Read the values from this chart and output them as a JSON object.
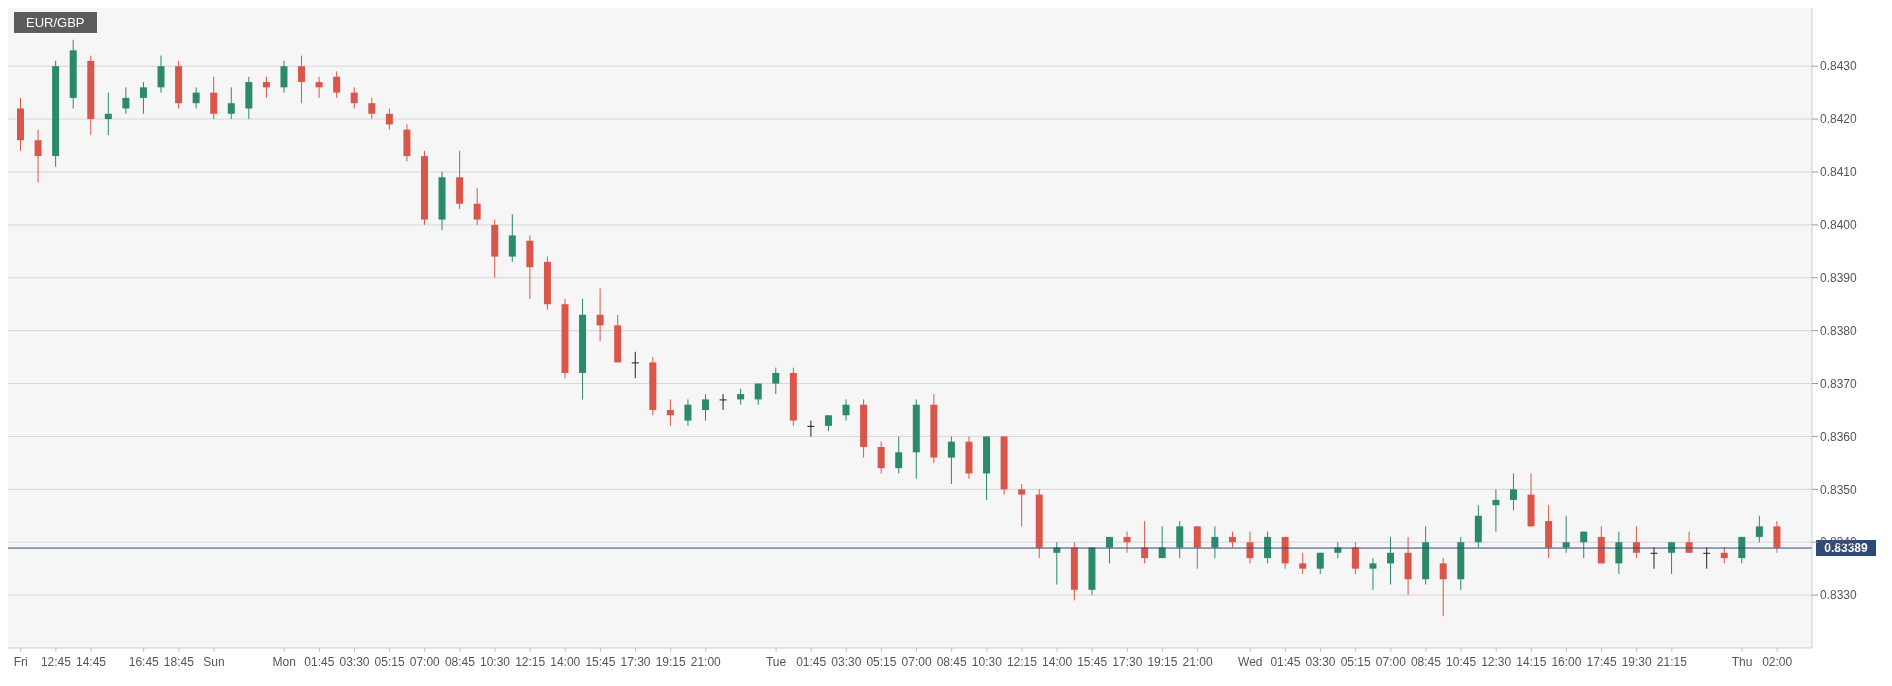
{
  "chart_data": {
    "type": "candlestick",
    "title": "EUR/GBP",
    "categories": [
      "Fri",
      null,
      "12:45",
      null,
      "14:45",
      null,
      null,
      "16:45",
      null,
      "18:45",
      null,
      "Sun",
      null,
      null,
      null,
      "Mon",
      null,
      "01:45",
      null,
      "03:30",
      null,
      "05:15",
      null,
      "07:00",
      null,
      "08:45",
      null,
      "10:30",
      null,
      "12:15",
      null,
      "14:00",
      null,
      "15:45",
      null,
      "17:30",
      null,
      "19:15",
      null,
      "21:00",
      null,
      null,
      null,
      "Tue",
      null,
      "01:45",
      null,
      "03:30",
      null,
      "05:15",
      null,
      "07:00",
      null,
      "08:45",
      null,
      "10:30",
      null,
      "12:15",
      null,
      "14:00",
      null,
      "15:45",
      null,
      "17:30",
      null,
      "19:15",
      null,
      "21:00",
      null,
      null,
      "Wed",
      null,
      "01:45",
      null,
      "03:30",
      null,
      "05:15",
      null,
      "07:00",
      null,
      "08:45",
      null,
      "10:45",
      null,
      "12:30",
      null,
      "14:15",
      null,
      "16:00",
      null,
      "17:45",
      null,
      "19:30",
      null,
      "21:15",
      null,
      null,
      null,
      "Thu",
      null,
      "02:00"
    ],
    "ohlc": [
      [
        0.8422,
        0.8424,
        0.8414,
        0.8416
      ],
      [
        0.8416,
        0.8418,
        0.8408,
        0.8413
      ],
      [
        0.8413,
        0.8431,
        0.8411,
        0.843
      ],
      [
        0.8424,
        0.8435,
        0.8422,
        0.8433
      ],
      [
        0.8431,
        0.8432,
        0.8417,
        0.842
      ],
      [
        0.842,
        0.8425,
        0.8417,
        0.8421
      ],
      [
        0.8422,
        0.8426,
        0.8421,
        0.8424
      ],
      [
        0.8424,
        0.8427,
        0.8421,
        0.8426
      ],
      [
        0.8426,
        0.8432,
        0.8425,
        0.843
      ],
      [
        0.843,
        0.8431,
        0.8422,
        0.8423
      ],
      [
        0.8423,
        0.8426,
        0.8422,
        0.8425
      ],
      [
        0.8425,
        0.8428,
        0.842,
        0.8421
      ],
      [
        0.8421,
        0.8426,
        0.842,
        0.8423
      ],
      [
        0.8422,
        0.8428,
        0.842,
        0.8427
      ],
      [
        0.8427,
        0.8428,
        0.8424,
        0.8426
      ],
      [
        0.8426,
        0.8431,
        0.8425,
        0.843
      ],
      [
        0.843,
        0.8432,
        0.8423,
        0.8427
      ],
      [
        0.8427,
        0.8428,
        0.8424,
        0.8426
      ],
      [
        0.8428,
        0.8429,
        0.8424,
        0.8425
      ],
      [
        0.8425,
        0.8426,
        0.8422,
        0.8423
      ],
      [
        0.8423,
        0.8424,
        0.842,
        0.8421
      ],
      [
        0.8421,
        0.8422,
        0.8418,
        0.8419
      ],
      [
        0.8418,
        0.8419,
        0.8412,
        0.8413
      ],
      [
        0.8413,
        0.8414,
        0.84,
        0.8401
      ],
      [
        0.8401,
        0.841,
        0.8399,
        0.8409
      ],
      [
        0.8409,
        0.8414,
        0.8403,
        0.8404
      ],
      [
        0.8404,
        0.8407,
        0.84,
        0.8401
      ],
      [
        0.84,
        0.8401,
        0.839,
        0.8394
      ],
      [
        0.8394,
        0.8402,
        0.8393,
        0.8398
      ],
      [
        0.8397,
        0.8398,
        0.8386,
        0.8392
      ],
      [
        0.8393,
        0.8394,
        0.8384,
        0.8385
      ],
      [
        0.8385,
        0.8386,
        0.8371,
        0.8372
      ],
      [
        0.8372,
        0.8386,
        0.8367,
        0.8383
      ],
      [
        0.8383,
        0.8388,
        0.8378,
        0.8381
      ],
      [
        0.8381,
        0.8383,
        0.8374,
        0.8374
      ],
      [
        0.8374,
        0.8376,
        0.8371,
        0.8374
      ],
      [
        0.8374,
        0.8375,
        0.8364,
        0.8365
      ],
      [
        0.8365,
        0.8367,
        0.8362,
        0.8364
      ],
      [
        0.8363,
        0.8367,
        0.8362,
        0.8366
      ],
      [
        0.8365,
        0.8368,
        0.8363,
        0.8367
      ],
      [
        0.8367,
        0.8368,
        0.8365,
        0.8367
      ],
      [
        0.8367,
        0.8369,
        0.8366,
        0.8368
      ],
      [
        0.8367,
        0.837,
        0.8366,
        0.837
      ],
      [
        0.837,
        0.8373,
        0.8368,
        0.8372
      ],
      [
        0.8372,
        0.8373,
        0.8362,
        0.8363
      ],
      [
        0.8362,
        0.8363,
        0.836,
        0.8362
      ],
      [
        0.8362,
        0.8364,
        0.8361,
        0.8364
      ],
      [
        0.8364,
        0.8367,
        0.8363,
        0.8366
      ],
      [
        0.8366,
        0.8367,
        0.8356,
        0.8358
      ],
      [
        0.8358,
        0.8359,
        0.8353,
        0.8354
      ],
      [
        0.8354,
        0.836,
        0.8353,
        0.8357
      ],
      [
        0.8357,
        0.8367,
        0.8352,
        0.8366
      ],
      [
        0.8366,
        0.8368,
        0.8355,
        0.8356
      ],
      [
        0.8356,
        0.836,
        0.8351,
        0.8359
      ],
      [
        0.8359,
        0.836,
        0.8352,
        0.8353
      ],
      [
        0.8353,
        0.836,
        0.8348,
        0.836
      ],
      [
        0.836,
        0.836,
        0.8349,
        0.835
      ],
      [
        0.835,
        0.8351,
        0.8343,
        0.8349
      ],
      [
        0.8349,
        0.835,
        0.8337,
        0.8339
      ],
      [
        0.8338,
        0.834,
        0.8332,
        0.8339
      ],
      [
        0.8339,
        0.834,
        0.8329,
        0.8331
      ],
      [
        0.8331,
        0.8339,
        0.833,
        0.8339
      ],
      [
        0.8339,
        0.8341,
        0.8336,
        0.8341
      ],
      [
        0.8341,
        0.8342,
        0.8338,
        0.834
      ],
      [
        0.8339,
        0.8344,
        0.8336,
        0.8337
      ],
      [
        0.8337,
        0.8343,
        0.8337,
        0.8339
      ],
      [
        0.8339,
        0.8344,
        0.8337,
        0.8343
      ],
      [
        0.8343,
        0.8343,
        0.8335,
        0.8339
      ],
      [
        0.8339,
        0.8343,
        0.8337,
        0.8341
      ],
      [
        0.8341,
        0.8342,
        0.8339,
        0.834
      ],
      [
        0.834,
        0.8342,
        0.8336,
        0.8337
      ],
      [
        0.8337,
        0.8342,
        0.8336,
        0.8341
      ],
      [
        0.8341,
        0.8341,
        0.8335,
        0.8336
      ],
      [
        0.8336,
        0.8338,
        0.8334,
        0.8335
      ],
      [
        0.8335,
        0.8338,
        0.8334,
        0.8338
      ],
      [
        0.8338,
        0.834,
        0.8337,
        0.8339
      ],
      [
        0.8339,
        0.834,
        0.8334,
        0.8335
      ],
      [
        0.8335,
        0.8337,
        0.8331,
        0.8336
      ],
      [
        0.8336,
        0.8341,
        0.8332,
        0.8338
      ],
      [
        0.8338,
        0.8341,
        0.833,
        0.8333
      ],
      [
        0.8333,
        0.8343,
        0.8332,
        0.834
      ],
      [
        0.8336,
        0.8337,
        0.8326,
        0.8333
      ],
      [
        0.8333,
        0.8341,
        0.8331,
        0.834
      ],
      [
        0.834,
        0.8347,
        0.8339,
        0.8345
      ],
      [
        0.8347,
        0.835,
        0.8342,
        0.8348
      ],
      [
        0.8348,
        0.8353,
        0.8346,
        0.835
      ],
      [
        0.8349,
        0.8353,
        0.8343,
        0.8343
      ],
      [
        0.8344,
        0.8347,
        0.8337,
        0.8339
      ],
      [
        0.8339,
        0.8345,
        0.8338,
        0.834
      ],
      [
        0.834,
        0.8342,
        0.8337,
        0.8342
      ],
      [
        0.8341,
        0.8343,
        0.8336,
        0.8336
      ],
      [
        0.8336,
        0.8342,
        0.8334,
        0.834
      ],
      [
        0.834,
        0.8343,
        0.8337,
        0.8338
      ],
      [
        0.8338,
        0.8339,
        0.8335,
        0.8338
      ],
      [
        0.8338,
        0.834,
        0.8334,
        0.834
      ],
      [
        0.834,
        0.8342,
        0.8338,
        0.8338
      ],
      [
        0.8338,
        0.8339,
        0.8335,
        0.8338
      ],
      [
        0.8338,
        0.8339,
        0.8336,
        0.8337
      ],
      [
        0.8337,
        0.8341,
        0.8336,
        0.8341
      ],
      [
        0.8341,
        0.8345,
        0.834,
        0.8343
      ],
      [
        0.8343,
        0.8344,
        0.8338,
        0.8339
      ]
    ],
    "colors": [
      "#d9574a",
      "#d9574a",
      "#2b8a6e",
      "#2b8a6e",
      "#d9574a",
      "#2b8a6e",
      "#2b8a6e",
      "#2b8a6e",
      "#2b8a6e",
      "#d9574a",
      "#2b8a6e",
      "#d9574a",
      "#2b8a6e",
      "#2b8a6e",
      "#d9574a",
      "#2b8a6e",
      "#d9574a",
      "#d9574a",
      "#d9574a",
      "#d9574a",
      "#d9574a",
      "#d9574a",
      "#d9574a",
      "#d9574a",
      "#2b8a6e",
      "#d9574a",
      "#d9574a",
      "#d9574a",
      "#2b8a6e",
      "#d9574a",
      "#d9574a",
      "#d9574a",
      "#2b8a6e",
      "#d9574a",
      "#d9574a",
      "#222222",
      "#d9574a",
      "#d9574a",
      "#2b8a6e",
      "#2b8a6e",
      "#222222",
      "#2b8a6e",
      "#2b8a6e",
      "#2b8a6e",
      "#d9574a",
      "#222222",
      "#2b8a6e",
      "#2b8a6e",
      "#d9574a",
      "#d9574a",
      "#2b8a6e",
      "#2b8a6e",
      "#d9574a",
      "#2b8a6e",
      "#d9574a",
      "#2b8a6e",
      "#d9574a",
      "#d9574a",
      "#d9574a",
      "#2b8a6e",
      "#d9574a",
      "#2b8a6e",
      "#2b8a6e",
      "#d9574a",
      "#d9574a",
      "#2b8a6e",
      "#2b8a6e",
      "#d9574a",
      "#2b8a6e",
      "#d9574a",
      "#d9574a",
      "#2b8a6e",
      "#d9574a",
      "#d9574a",
      "#2b8a6e",
      "#2b8a6e",
      "#d9574a",
      "#2b8a6e",
      "#2b8a6e",
      "#d9574a",
      "#2b8a6e",
      "#d9574a",
      "#2b8a6e",
      "#2b8a6e",
      "#2b8a6e",
      "#2b8a6e",
      "#d9574a",
      "#d9574a",
      "#2b8a6e",
      "#2b8a6e",
      "#d9574a",
      "#2b8a6e",
      "#d9574a",
      "#222222",
      "#2b8a6e",
      "#d9574a",
      "#222222",
      "#d9574a",
      "#2b8a6e",
      "#2b8a6e",
      "#d9574a"
    ],
    "ylim": [
      0.832,
      0.8441
    ],
    "yticks": [
      {
        "value": 0.833,
        "label": "0.8330"
      },
      {
        "value": 0.834,
        "label": "0.8340"
      },
      {
        "value": 0.835,
        "label": "0.8350"
      },
      {
        "value": 0.836,
        "label": "0.8360"
      },
      {
        "value": 0.837,
        "label": "0.8370"
      },
      {
        "value": 0.838,
        "label": "0.8380"
      },
      {
        "value": 0.839,
        "label": "0.8390"
      },
      {
        "value": 0.84,
        "label": "0.8400"
      },
      {
        "value": 0.841,
        "label": "0.8410"
      },
      {
        "value": 0.842,
        "label": "0.8420"
      },
      {
        "value": 0.843,
        "label": "0.8430"
      }
    ],
    "ref_lines": [
      {
        "axis": "y",
        "value": 0.83389,
        "label": "0.83389",
        "color": "#2d4a75"
      }
    ],
    "grid": "y"
  }
}
